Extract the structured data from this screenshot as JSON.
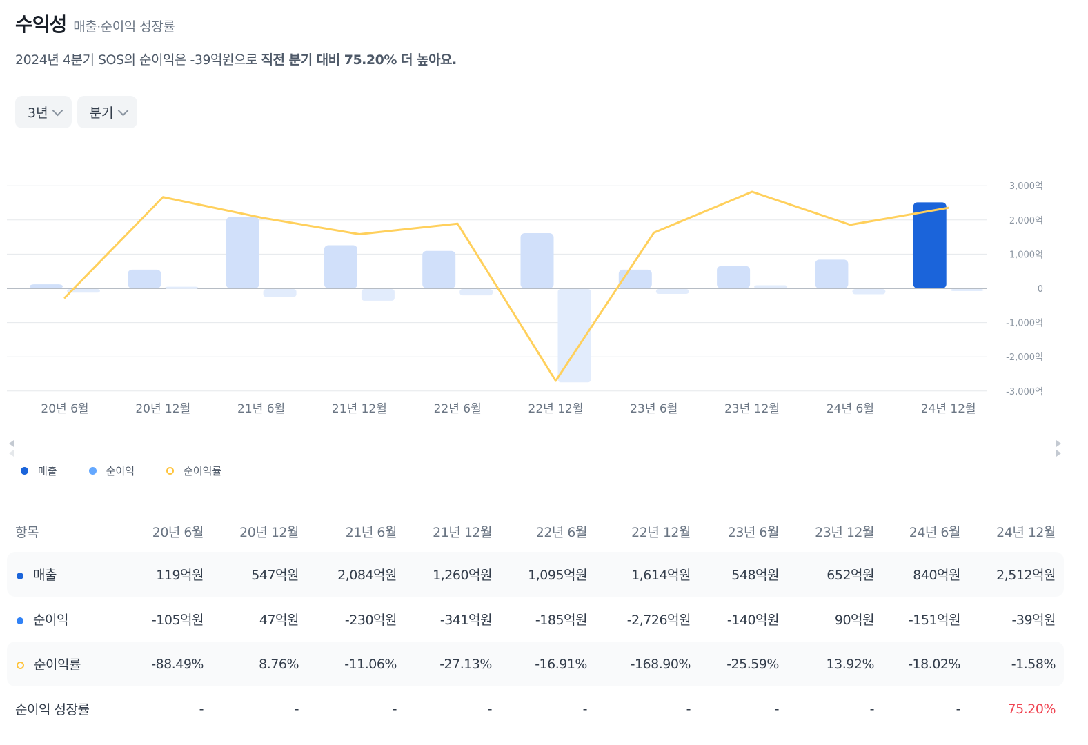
{
  "header": {
    "title": "수익성",
    "subtitle": "매출·순이익 성장률",
    "summary_plain": "2024년 4분기 SOS의 순이익은 -39억원으로 ",
    "summary_bold": "직전 분기 대비 75.20% 더 높아요."
  },
  "filters": {
    "period": "3년",
    "unit": "분기"
  },
  "colors": {
    "revenue_highlight": "#1b64da",
    "revenue_bar": "#d1e0fa",
    "net_income_bar": "#e2ecfc",
    "net_margin_line": "#ffd05c",
    "positive_change": "#f04452"
  },
  "legend": {
    "revenue": "매출",
    "net_income": "순이익",
    "net_margin": "순이익률"
  },
  "chart_data": {
    "type": "bar",
    "categories": [
      "20년 6월",
      "20년 12월",
      "21년 6월",
      "21년 12월",
      "22년 6월",
      "22년 12월",
      "23년 6월",
      "23년 12월",
      "24년 6월",
      "24년 12월"
    ],
    "series": [
      {
        "name": "매출",
        "type": "bar",
        "axis": "left",
        "values": [
          119,
          547,
          2084,
          1260,
          1095,
          1614,
          548,
          652,
          840,
          2512
        ]
      },
      {
        "name": "순이익",
        "type": "bar",
        "axis": "left",
        "values": [
          -105,
          47,
          -230,
          -341,
          -185,
          -2726,
          -140,
          90,
          -151,
          -39
        ]
      },
      {
        "name": "순이익률",
        "type": "line",
        "axis": "hidden",
        "values": [
          -88.49,
          8.76,
          -11.06,
          -27.13,
          -16.91,
          -168.9,
          -25.59,
          13.92,
          -18.02,
          -1.58
        ]
      }
    ],
    "y_ticks": [
      "3,000억",
      "2,000억",
      "1,000억",
      "0",
      "-1,000억",
      "-2,000억",
      "-3,000억"
    ],
    "ylim": [
      -3000,
      3000
    ],
    "y_axis_position": "right",
    "grid": true
  },
  "table": {
    "header_label": "항목",
    "columns": [
      "20년 6월",
      "20년 12월",
      "21년 6월",
      "21년 12월",
      "22년 6월",
      "22년 12월",
      "23년 6월",
      "23년 12월",
      "24년 6월",
      "24년 12월"
    ],
    "rows": [
      {
        "label": "매출",
        "values": [
          "119억원",
          "547억원",
          "2,084억원",
          "1,260억원",
          "1,095억원",
          "1,614억원",
          "548억원",
          "652억원",
          "840억원",
          "2,512억원"
        ]
      },
      {
        "label": "순이익",
        "values": [
          "-105억원",
          "47억원",
          "-230억원",
          "-341억원",
          "-185억원",
          "-2,726억원",
          "-140억원",
          "90억원",
          "-151억원",
          "-39억원"
        ]
      },
      {
        "label": "순이익률",
        "values": [
          "-88.49%",
          "8.76%",
          "-11.06%",
          "-27.13%",
          "-16.91%",
          "-168.90%",
          "-25.59%",
          "13.92%",
          "-18.02%",
          "-1.58%"
        ]
      },
      {
        "label": "순이익 성장률",
        "values": [
          "-",
          "-",
          "-",
          "-",
          "-",
          "-",
          "-",
          "-",
          "-",
          "75.20%"
        ]
      }
    ]
  }
}
